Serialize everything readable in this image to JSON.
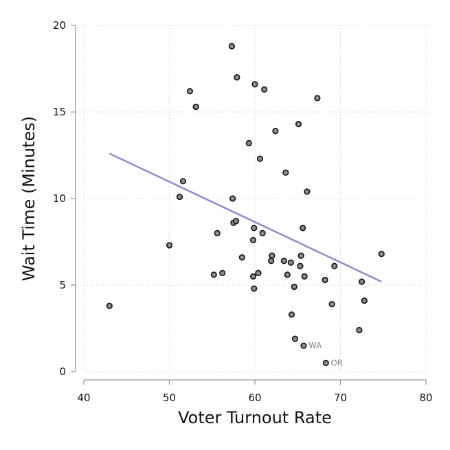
{
  "chart_data": {
    "type": "scatter",
    "xlabel": "Voter Turnout Rate",
    "ylabel": "Wait Time (Minutes)",
    "xlim": [
      40,
      80
    ],
    "ylim": [
      0,
      20
    ],
    "xticks": [
      "40",
      "50",
      "60",
      "70",
      "80"
    ],
    "yticks": [
      "0",
      "5",
      "10",
      "15",
      "20"
    ],
    "grid": true,
    "colors": {
      "point_fill": "#8c8c8c",
      "point_stroke": "#111111",
      "trend_line": "#8c8bd6",
      "grid": "#cfcfcf",
      "axis": "#999999"
    },
    "points": [
      {
        "x": 43.0,
        "y": 3.8
      },
      {
        "x": 50.0,
        "y": 7.3
      },
      {
        "x": 51.2,
        "y": 10.1
      },
      {
        "x": 51.6,
        "y": 11.0
      },
      {
        "x": 52.4,
        "y": 16.2
      },
      {
        "x": 53.1,
        "y": 15.3
      },
      {
        "x": 55.2,
        "y": 5.6
      },
      {
        "x": 55.6,
        "y": 8.0
      },
      {
        "x": 56.2,
        "y": 5.7
      },
      {
        "x": 57.3,
        "y": 18.8
      },
      {
        "x": 57.4,
        "y": 10.0
      },
      {
        "x": 57.5,
        "y": 8.6
      },
      {
        "x": 57.8,
        "y": 8.7
      },
      {
        "x": 57.9,
        "y": 17.0
      },
      {
        "x": 58.5,
        "y": 6.6
      },
      {
        "x": 59.3,
        "y": 13.2
      },
      {
        "x": 59.8,
        "y": 7.6
      },
      {
        "x": 59.8,
        "y": 5.5
      },
      {
        "x": 59.9,
        "y": 8.3
      },
      {
        "x": 59.9,
        "y": 4.8
      },
      {
        "x": 60.0,
        "y": 16.6
      },
      {
        "x": 60.4,
        "y": 5.7
      },
      {
        "x": 60.6,
        "y": 12.3
      },
      {
        "x": 60.9,
        "y": 8.0
      },
      {
        "x": 61.1,
        "y": 16.3
      },
      {
        "x": 61.9,
        "y": 6.4
      },
      {
        "x": 62.0,
        "y": 6.7
      },
      {
        "x": 62.4,
        "y": 13.9
      },
      {
        "x": 63.4,
        "y": 6.4
      },
      {
        "x": 63.6,
        "y": 11.5
      },
      {
        "x": 63.8,
        "y": 5.6
      },
      {
        "x": 64.2,
        "y": 6.3
      },
      {
        "x": 64.3,
        "y": 3.3
      },
      {
        "x": 64.6,
        "y": 4.9
      },
      {
        "x": 64.7,
        "y": 1.9
      },
      {
        "x": 65.1,
        "y": 14.3
      },
      {
        "x": 65.3,
        "y": 6.1
      },
      {
        "x": 65.4,
        "y": 6.7
      },
      {
        "x": 65.6,
        "y": 8.3
      },
      {
        "x": 65.7,
        "y": 1.5,
        "label": "WA"
      },
      {
        "x": 65.8,
        "y": 5.5
      },
      {
        "x": 66.1,
        "y": 10.4
      },
      {
        "x": 67.3,
        "y": 15.8
      },
      {
        "x": 68.2,
        "y": 5.3
      },
      {
        "x": 68.3,
        "y": 0.5,
        "label": "OR"
      },
      {
        "x": 69.0,
        "y": 3.9
      },
      {
        "x": 69.3,
        "y": 6.1
      },
      {
        "x": 72.2,
        "y": 2.4
      },
      {
        "x": 72.5,
        "y": 5.2
      },
      {
        "x": 72.8,
        "y": 4.1
      },
      {
        "x": 74.8,
        "y": 6.8
      }
    ],
    "trend_line": {
      "x": [
        43.0,
        74.8
      ],
      "y": [
        12.6,
        5.2
      ]
    }
  }
}
